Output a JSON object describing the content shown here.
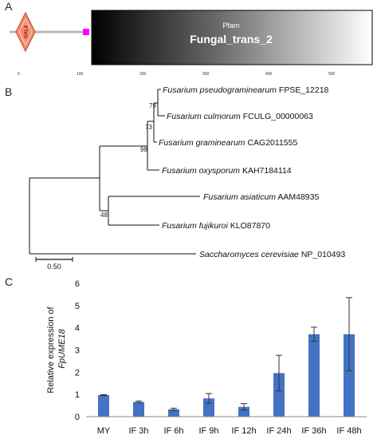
{
  "panels": {
    "a": "A",
    "b": "B",
    "c": "C"
  },
  "domain_map": {
    "gal4_label": "GAL4",
    "pfam_label": "Pfam",
    "domain_name": "Fungal_trans_2",
    "ruler_ticks": [
      "0",
      "100",
      "200",
      "300",
      "400",
      "500"
    ],
    "colors": {
      "gal4_fill": "#f28c72",
      "gal4_stroke": "#d2513a",
      "linker": "#ff00ff",
      "backbone": "#b8b8b8"
    }
  },
  "tree": {
    "taxa": [
      {
        "genus_species": "Fusarium pseudograminearum",
        "accession": "FPSE_12218"
      },
      {
        "genus_species": "Fusarium culmorum",
        "accession": "FCULG_00000063"
      },
      {
        "genus_species": "Fusarium graminearum",
        "accession": "CAG2011555"
      },
      {
        "genus_species": "Fusarium oxysporum",
        "accession": "KAH7184114"
      },
      {
        "genus_species": "Fusarium asiaticum",
        "accession": "AAM48935"
      },
      {
        "genus_species": "Fusarium fujikuroi",
        "accession": "KLO87870"
      },
      {
        "genus_species": "Saccharomyces cerevisiae",
        "accession": "NP_010493"
      }
    ],
    "bootstrap": [
      "79",
      "73",
      "98",
      "48"
    ],
    "scale_bar_label": "0.50"
  },
  "chart_data": {
    "type": "bar",
    "categories": [
      "MY",
      "IF 3h",
      "IF 6h",
      "IF 9h",
      "IF 12h",
      "IF 24h",
      "IF 36h",
      "IF 48h"
    ],
    "values": [
      0.97,
      0.66,
      0.33,
      0.82,
      0.44,
      1.96,
      3.71,
      3.71
    ],
    "errors": [
      0.02,
      0.04,
      0.05,
      0.22,
      0.15,
      0.8,
      0.32,
      1.65
    ],
    "ylabel_prefix": "Relative expression of",
    "ylabel_gene": "FpUME18",
    "ylim": [
      0,
      6
    ],
    "yticks": [
      "0",
      "1",
      "2",
      "3",
      "4",
      "5",
      "6"
    ],
    "bar_color": "#4472c4",
    "grid": false
  }
}
